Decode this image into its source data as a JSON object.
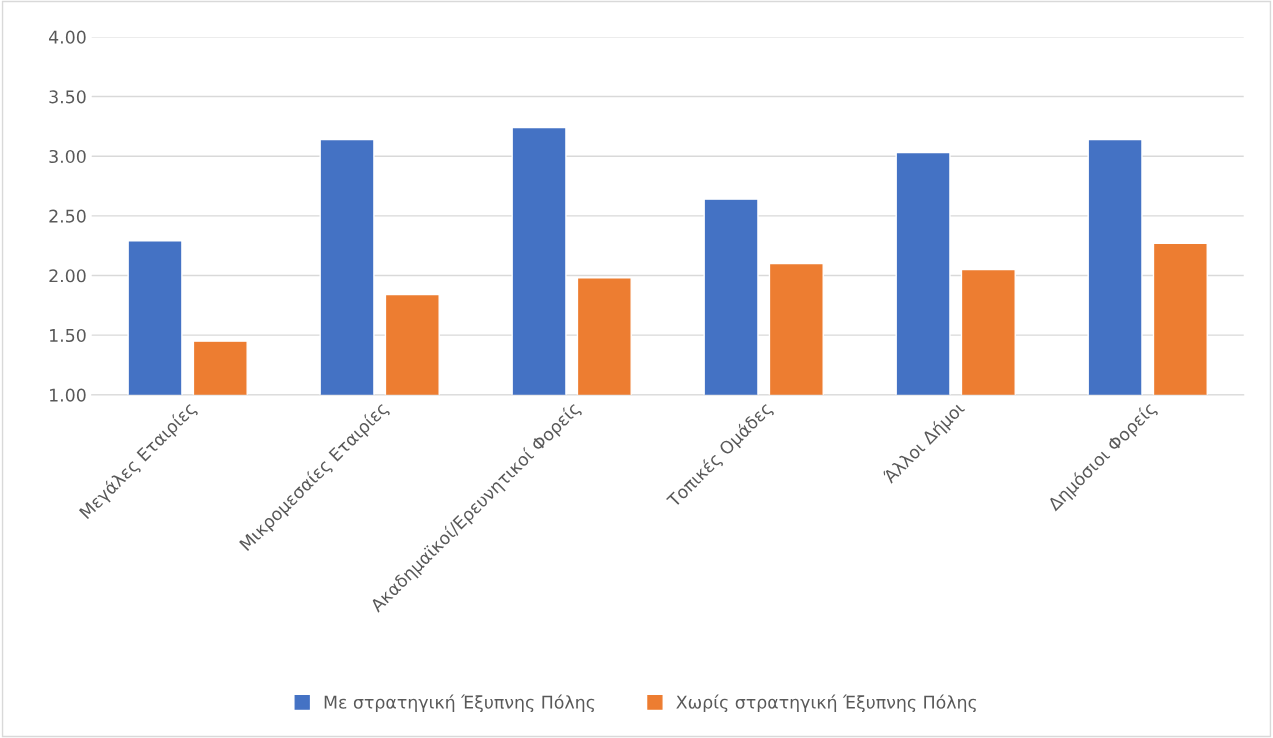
{
  "chart_data": {
    "type": "bar",
    "categories": [
      "Μεγάλες Εταιρίες",
      "Μικρομεσαίες Εταιρίες",
      "Ακαδημαϊκοί/Ερευνητικοί Φορείς",
      "Τοπικές Ομάδες",
      "Άλλοι Δήμοι",
      "Δημόσιοι Φορείς"
    ],
    "series": [
      {
        "name": "Με στρατηγική Έξυπνης Πόλης",
        "color": "#4472c4",
        "values": [
          2.29,
          3.14,
          3.24,
          2.64,
          3.03,
          3.14
        ]
      },
      {
        "name": "Χωρίς στρατηγική Έξυπνης Πόλης",
        "color": "#ed7d31",
        "values": [
          1.45,
          1.84,
          1.98,
          2.1,
          2.05,
          2.27
        ]
      }
    ],
    "ylim": [
      1,
      4
    ],
    "yticks": [
      {
        "value": 1,
        "label": "1.00"
      },
      {
        "value": 1.5,
        "label": "1.50"
      },
      {
        "value": 2,
        "label": "2.00"
      },
      {
        "value": 2.5,
        "label": "2.50"
      },
      {
        "value": 3,
        "label": "3.00"
      },
      {
        "value": 3.5,
        "label": "3.50"
      },
      {
        "value": 4,
        "label": "4.00"
      }
    ],
    "grid": "y",
    "legend": "bottom"
  }
}
